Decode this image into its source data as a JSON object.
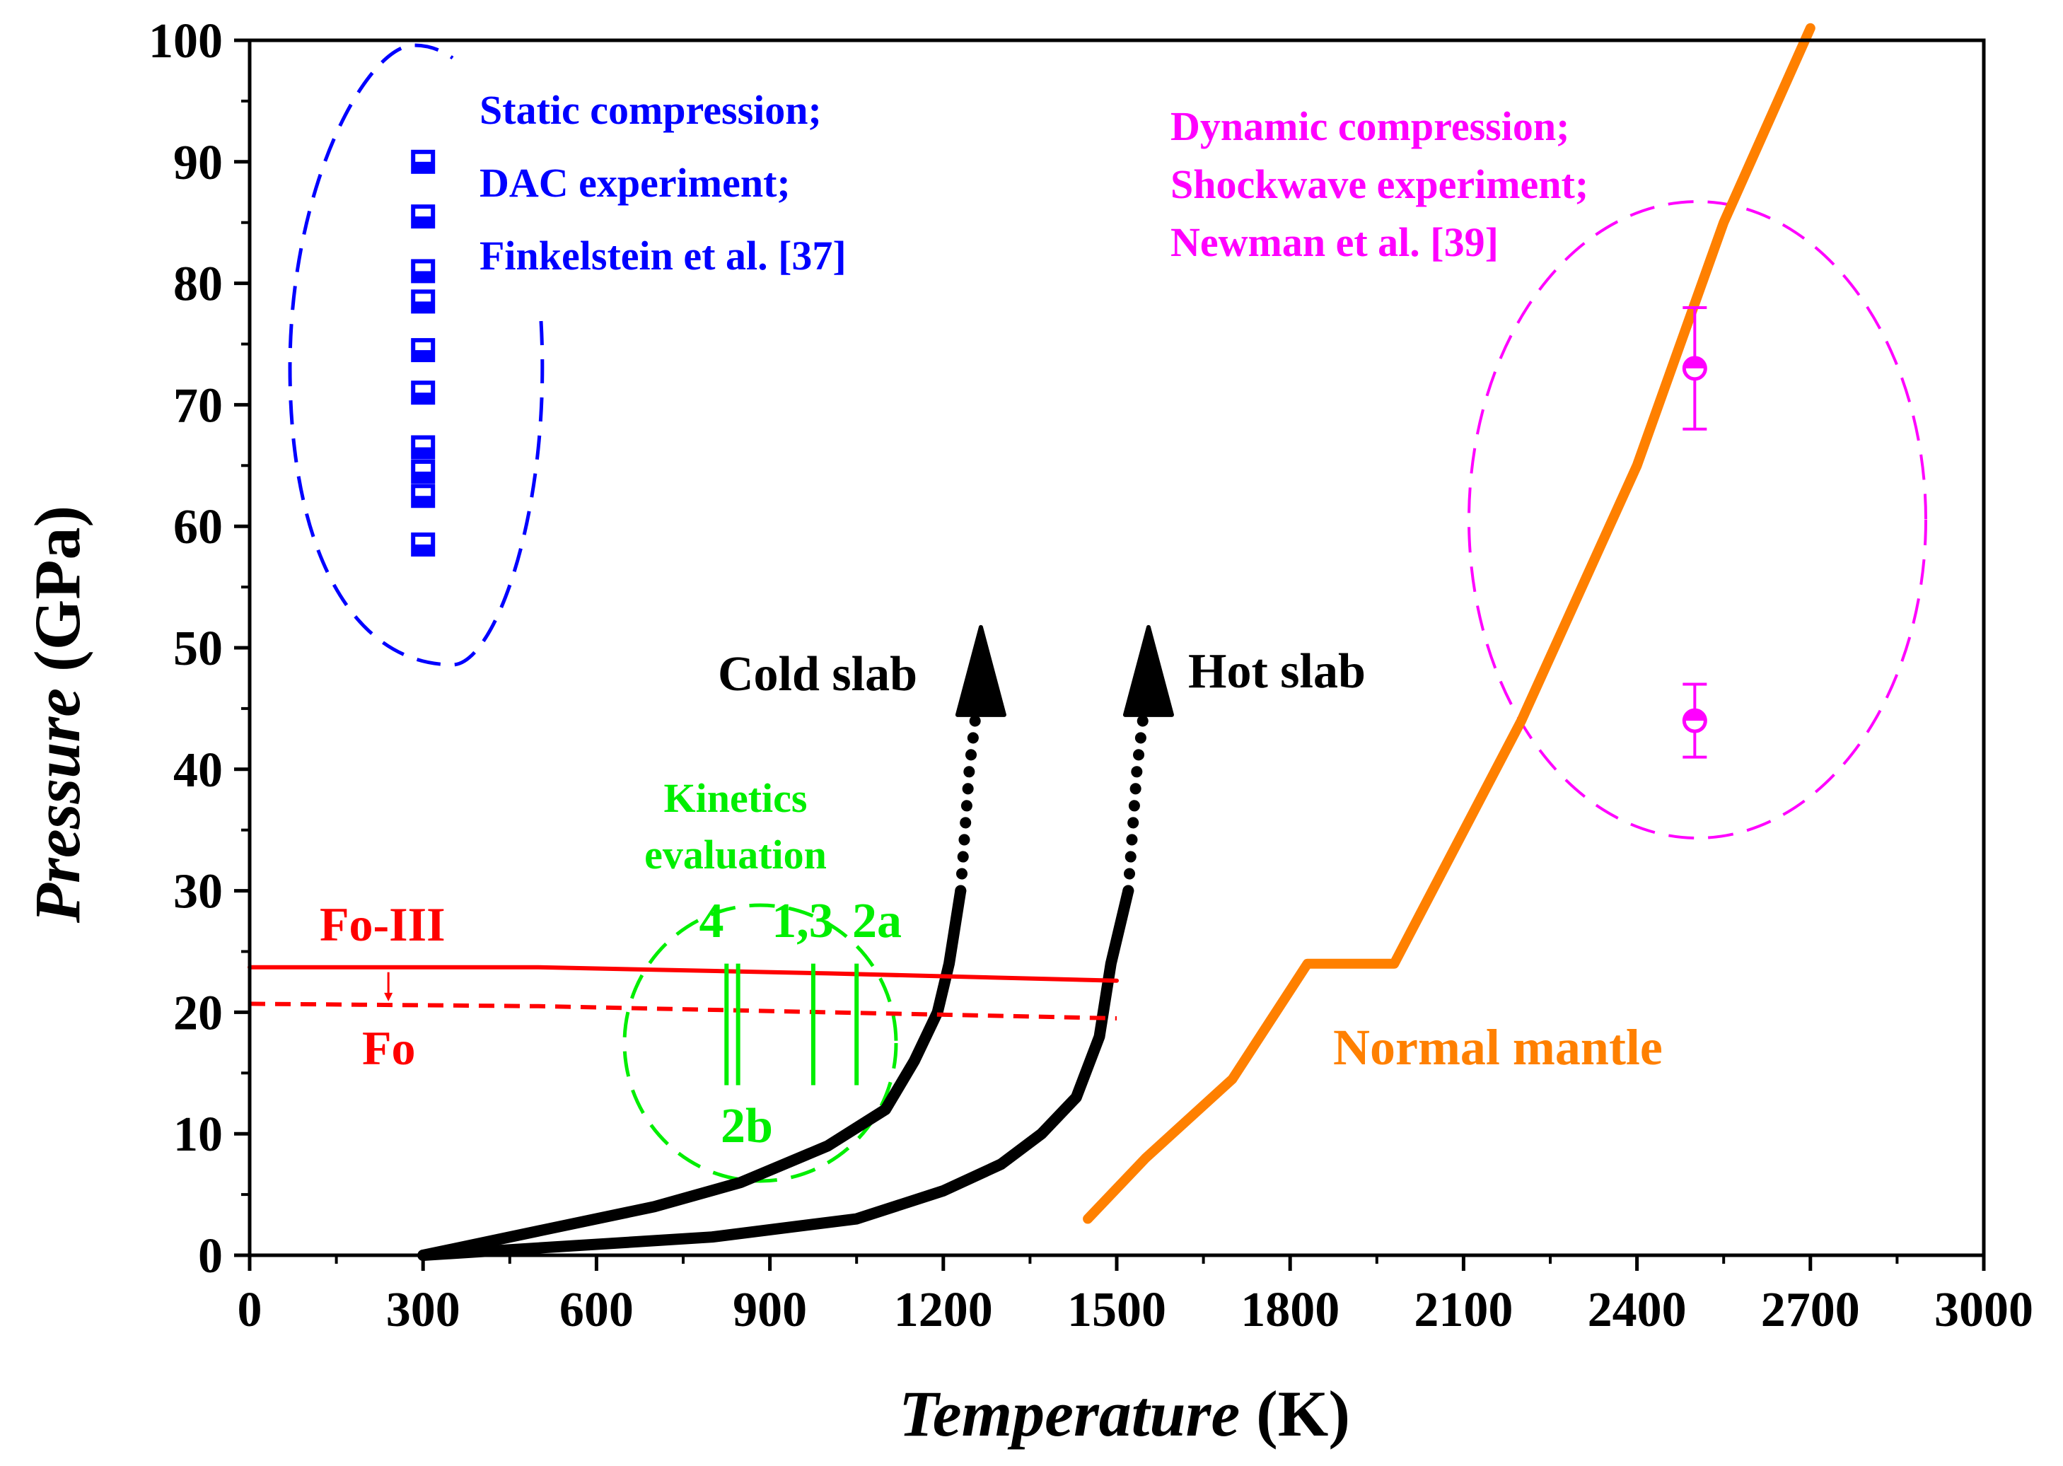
{
  "chart_data": {
    "type": "line",
    "xlabel": {
      "italic": "Temperature",
      "unit": "(K)"
    },
    "ylabel": {
      "italic": "Pressure",
      "unit": "(GPa)"
    },
    "xlim": [
      0,
      3000
    ],
    "ylim": [
      0,
      100
    ],
    "xticks": [
      0,
      300,
      600,
      900,
      1200,
      1500,
      1800,
      2100,
      2400,
      2700,
      3000
    ],
    "yticks": [
      0,
      10,
      20,
      30,
      40,
      50,
      60,
      70,
      80,
      90,
      100
    ],
    "xticks_minor": [
      150,
      450,
      750,
      1050,
      1350,
      1650,
      1950,
      2250,
      2550,
      2850
    ],
    "yticks_minor": [
      5,
      15,
      25,
      35,
      45,
      55,
      65,
      75,
      85,
      95
    ],
    "series": [
      {
        "name": "Cold slab",
        "color": "#000000",
        "style": "solid",
        "arrow_path_end": [
          1265,
          51
        ],
        "points": [
          [
            300,
            0
          ],
          [
            500,
            2
          ],
          [
            700,
            4
          ],
          [
            850,
            6
          ],
          [
            1000,
            9
          ],
          [
            1100,
            12
          ],
          [
            1150,
            16
          ],
          [
            1190,
            20
          ],
          [
            1210,
            24
          ],
          [
            1230,
            30
          ]
        ],
        "extension": [
          [
            1230,
            30
          ],
          [
            1245,
            40
          ],
          [
            1260,
            46
          ]
        ]
      },
      {
        "name": "Hot slab",
        "color": "#000000",
        "style": "solid",
        "arrow_path_end": [
          1555,
          51
        ],
        "points": [
          [
            300,
            0
          ],
          [
            800,
            1.5
          ],
          [
            1050,
            3
          ],
          [
            1200,
            5.3
          ],
          [
            1300,
            7.5
          ],
          [
            1370,
            10
          ],
          [
            1430,
            13
          ],
          [
            1470,
            18
          ],
          [
            1490,
            24
          ],
          [
            1520,
            30
          ]
        ],
        "extension": [
          [
            1520,
            30
          ],
          [
            1535,
            40
          ],
          [
            1550,
            46
          ]
        ]
      },
      {
        "name": "Normal mantle",
        "color": "#ff8000",
        "style": "solid",
        "points": [
          [
            1450,
            3
          ],
          [
            1550,
            8
          ],
          [
            1700,
            14.5
          ],
          [
            1830,
            24
          ],
          [
            1980,
            24
          ],
          [
            2200,
            44
          ],
          [
            2400,
            65
          ],
          [
            2550,
            85
          ],
          [
            2700,
            101
          ]
        ]
      },
      {
        "name": "Fo-III",
        "color": "#ff0000",
        "style": "solid",
        "points": [
          [
            0,
            23.7
          ],
          [
            500,
            23.7
          ],
          [
            1000,
            23.2
          ],
          [
            1500,
            22.6
          ]
        ]
      },
      {
        "name": "Fo",
        "color": "#ff0000",
        "style": "dashed",
        "points": [
          [
            0,
            20.7
          ],
          [
            500,
            20.5
          ],
          [
            1000,
            20.0
          ],
          [
            1500,
            19.5
          ]
        ]
      }
    ],
    "static_compression": {
      "name": "Finkelstein et al. [37]",
      "color": "#0000ff",
      "temperature": 300,
      "pressures": [
        58.5,
        62.5,
        64.5,
        66.5,
        71,
        74.5,
        78.5,
        81,
        85.5,
        90
      ]
    },
    "dynamic_compression": {
      "name": "Newman et al. [39]",
      "color": "#ff00ff",
      "points": [
        {
          "x": 2500,
          "y": 73,
          "yerr_low": 68,
          "yerr_high": 78
        },
        {
          "x": 2500,
          "y": 44,
          "yerr_low": 41,
          "yerr_high": 47
        }
      ]
    },
    "kinetics_lines": [
      {
        "label": "4",
        "x": 825,
        "y_range": [
          14,
          24
        ]
      },
      {
        "label": "2b",
        "x": 845,
        "y_range": [
          14,
          24
        ]
      },
      {
        "label": "1,3",
        "x": 975,
        "y_range": [
          14,
          24
        ]
      },
      {
        "label": "2a",
        "x": 1050,
        "y_range": [
          14,
          24
        ]
      }
    ],
    "annotations": {
      "static_lines": [
        "Static compression;",
        "DAC experiment;",
        "Finkelstein et al. [37]"
      ],
      "dynamic_lines": [
        "Dynamic compression;",
        "Shockwave experiment;",
        "Newman et al. [39]"
      ],
      "kinetics": [
        "Kinetics",
        "evaluation"
      ],
      "cold_slab": "Cold slab",
      "hot_slab": "Hot slab",
      "normal_mantle": "Normal mantle",
      "fo3": "Fo-III",
      "fo": "Fo",
      "kin_4": "4",
      "kin_13": "1,3",
      "kin_2a": "2a",
      "kin_2b": "2b"
    },
    "colors": {
      "static": "#0000ff",
      "dynamic": "#ff00ff",
      "kinetics": "#00ee00",
      "phase": "#ff0000",
      "mantle": "#ff8000",
      "slab": "#000000"
    }
  }
}
